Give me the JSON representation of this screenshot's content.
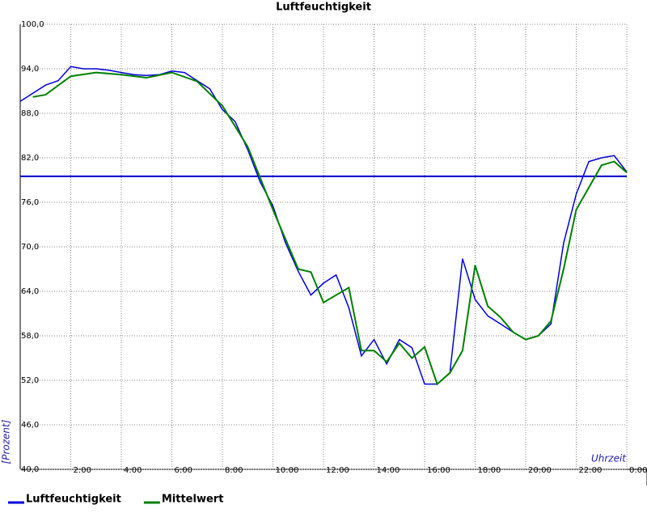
{
  "chart_data": {
    "type": "line",
    "title": "Luftfeuchtigkeit",
    "x_label": "Uhrzeit",
    "y_label": "[Prozent]",
    "xlim": [
      0,
      24
    ],
    "xticks": [
      {
        "value": 2,
        "label": "2:00"
      },
      {
        "value": 4,
        "label": "4:00"
      },
      {
        "value": 6,
        "label": "6:00"
      },
      {
        "value": 8,
        "label": "8:00"
      },
      {
        "value": 10,
        "label": "10:00"
      },
      {
        "value": 12,
        "label": "12:00"
      },
      {
        "value": 14,
        "label": "14:00"
      },
      {
        "value": 16,
        "label": "16:00"
      },
      {
        "value": 18,
        "label": "18:00"
      },
      {
        "value": 20,
        "label": "20:00"
      },
      {
        "value": 22,
        "label": "22:00"
      },
      {
        "value": 24,
        "label": "0:00"
      }
    ],
    "ylim": [
      40,
      100
    ],
    "yticks": [
      {
        "value": 40,
        "label": "40,0"
      },
      {
        "value": 46,
        "label": "46,0"
      },
      {
        "value": 52,
        "label": "52,0"
      },
      {
        "value": 58,
        "label": "58,0"
      },
      {
        "value": 64,
        "label": "64,0"
      },
      {
        "value": 70,
        "label": "70,0"
      },
      {
        "value": 76,
        "label": "76,0"
      },
      {
        "value": 82,
        "label": "82,0"
      },
      {
        "value": 88,
        "label": "88,0"
      },
      {
        "value": 94,
        "label": "94,0"
      },
      {
        "value": 100,
        "label": "100,0"
      }
    ],
    "grid": true,
    "legend": "bottom",
    "reference_line": {
      "value": 79.5,
      "color": "#0000cc"
    },
    "series": [
      {
        "name": "Luftfeuchtigkeit",
        "color": "#0000dd",
        "x": [
          0,
          0.5,
          1,
          1.5,
          2,
          2.5,
          3,
          3.5,
          4,
          4.5,
          5,
          5.5,
          6,
          6.5,
          7,
          7.5,
          8,
          8.5,
          9,
          9.5,
          10,
          10.5,
          11,
          11.5,
          12,
          12.5,
          13,
          13.5,
          14,
          14.5,
          15,
          15.5,
          16,
          16.5,
          17,
          17.5,
          18,
          18.5,
          19,
          19.5,
          20,
          20.5,
          21,
          21.5,
          22,
          22.5,
          23,
          23.5,
          24
        ],
        "values": [
          89.6,
          90.7,
          91.8,
          92.4,
          94.3,
          94,
          94,
          93.8,
          93.5,
          93.2,
          93.1,
          93.2,
          93.7,
          93.5,
          92.4,
          91.3,
          88.5,
          86.9,
          83.1,
          78.7,
          75.5,
          70.5,
          66.7,
          63.5,
          65.1,
          66.2,
          61.8,
          55.3,
          57.5,
          54.2,
          57.5,
          56.4,
          51.5,
          51.5,
          53,
          68.4,
          62.9,
          60.7,
          59.6,
          58.5,
          57.5,
          58,
          59.6,
          70.5,
          77.1,
          81.5,
          82,
          82.3,
          80.1
        ]
      },
      {
        "name": "Mittelwert",
        "color": "#008000",
        "x": [
          0.5,
          1,
          2,
          3,
          4,
          5,
          6,
          7,
          8,
          9,
          10,
          11,
          11.5,
          12,
          13,
          13.5,
          14,
          14.5,
          15,
          15.5,
          16,
          16.5,
          17,
          17.5,
          18,
          18.5,
          19,
          19.5,
          20,
          20.5,
          21,
          21.5,
          22,
          22.5,
          23,
          23.5,
          24
        ],
        "values": [
          90.2,
          90.5,
          93,
          93.5,
          93.2,
          92.8,
          93.5,
          92.3,
          89,
          83.5,
          75,
          67,
          66.6,
          62.5,
          64.5,
          56,
          56,
          54.5,
          57,
          55,
          56.5,
          51.5,
          53,
          56,
          67.5,
          62,
          60.5,
          58.5,
          57.5,
          58,
          60,
          67,
          75,
          78,
          81,
          81.5,
          80
        ]
      }
    ]
  }
}
